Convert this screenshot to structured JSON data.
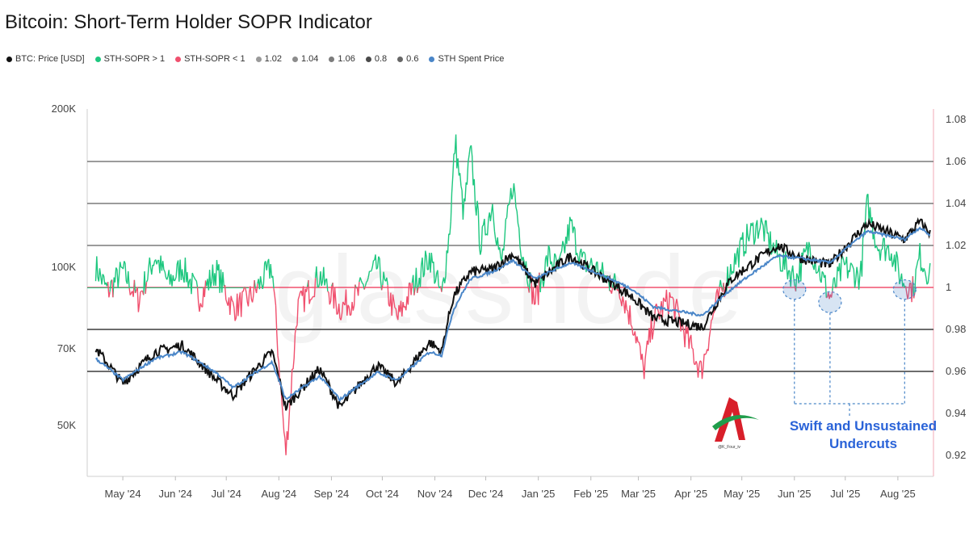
{
  "chart_data": {
    "type": "line",
    "title": "Bitcoin: Short-Term Holder SOPR Indicator",
    "legend": [
      {
        "label": "BTC: Price [USD]",
        "color": "#111111"
      },
      {
        "label": "STH-SOPR > 1",
        "color": "#1ec77f"
      },
      {
        "label": "STH-SOPR < 1",
        "color": "#f0506e"
      },
      {
        "label": "1.02",
        "color": "#9a9a9a"
      },
      {
        "label": "1.04",
        "color": "#8c8c8c"
      },
      {
        "label": "1.06",
        "color": "#7c7c7c"
      },
      {
        "label": "0.8",
        "color": "#4a4a4a"
      },
      {
        "label": "0.6",
        "color": "#666666"
      },
      {
        "label": "STH Spent Price",
        "color": "#4a86c8"
      }
    ],
    "x_ticks": [
      "May '24",
      "Jun '24",
      "Jul '24",
      "Aug '24",
      "Sep '24",
      "Oct '24",
      "Nov '24",
      "Dec '24",
      "Jan '25",
      "Feb '25",
      "Mar '25",
      "Apr '25",
      "May '25",
      "Jun '25",
      "Jul '25",
      "Aug '25"
    ],
    "y_left": {
      "scale": "log",
      "ticks": [
        {
          "value": 50000,
          "label": "50K"
        },
        {
          "value": 70000,
          "label": "70K"
        },
        {
          "value": 100000,
          "label": "100K"
        },
        {
          "value": 200000,
          "label": "200K"
        }
      ],
      "range": [
        40000,
        200000
      ]
    },
    "y_right": {
      "ticks": [
        "0.92",
        "0.94",
        "0.96",
        "0.98",
        "1",
        "1.02",
        "1.04",
        "1.06",
        "1.08"
      ],
      "range": [
        0.91,
        1.085
      ]
    },
    "reference_lines": [
      0.96,
      0.98,
      1.0,
      1.02,
      1.04,
      1.06
    ],
    "price_series": {
      "name": "BTC: Price [USD]",
      "x": [
        "2024-04-15",
        "2024-05-01",
        "2024-05-20",
        "2024-06-05",
        "2024-06-25",
        "2024-07-05",
        "2024-07-28",
        "2024-08-05",
        "2024-08-25",
        "2024-09-06",
        "2024-09-28",
        "2024-10-10",
        "2024-10-29",
        "2024-11-05",
        "2024-11-12",
        "2024-11-22",
        "2024-12-05",
        "2024-12-17",
        "2024-12-30",
        "2025-01-20",
        "2025-02-03",
        "2025-02-25",
        "2025-03-10",
        "2025-04-08",
        "2025-04-25",
        "2025-05-22",
        "2025-06-05",
        "2025-06-22",
        "2025-07-14",
        "2025-08-05",
        "2025-08-14",
        "2025-08-20"
      ],
      "values": [
        70000,
        60000,
        69000,
        71000,
        61000,
        57000,
        69000,
        54000,
        64000,
        54000,
        65000,
        60000,
        72000,
        69000,
        88000,
        98000,
        99000,
        106000,
        93000,
        105000,
        98000,
        88000,
        80000,
        77000,
        95000,
        110000,
        104000,
        101000,
        121000,
        113000,
        122000,
        116000
      ]
    },
    "spent_price_series": {
      "name": "STH Spent Price",
      "x": [
        "2024-04-15",
        "2024-05-01",
        "2024-05-20",
        "2024-06-05",
        "2024-06-25",
        "2024-07-05",
        "2024-07-28",
        "2024-08-05",
        "2024-08-25",
        "2024-09-06",
        "2024-09-28",
        "2024-10-10",
        "2024-10-29",
        "2024-11-05",
        "2024-11-12",
        "2024-11-22",
        "2024-12-05",
        "2024-12-17",
        "2024-12-30",
        "2025-01-20",
        "2025-02-03",
        "2025-02-25",
        "2025-03-10",
        "2025-04-08",
        "2025-04-25",
        "2025-05-22",
        "2025-06-05",
        "2025-06-22",
        "2025-07-14",
        "2025-08-05",
        "2025-08-14",
        "2025-08-20"
      ],
      "values": [
        67000,
        61000,
        67000,
        69000,
        63000,
        59000,
        66000,
        56000,
        62000,
        56000,
        63000,
        61000,
        69000,
        68000,
        83000,
        95000,
        98000,
        103000,
        95000,
        102000,
        98000,
        91000,
        84000,
        81000,
        91000,
        105000,
        104000,
        102000,
        117000,
        113000,
        119000,
        115000
      ]
    },
    "sopr_series": {
      "name": "STH-SOPR",
      "x": [
        "2024-04-15",
        "2024-04-22",
        "2024-05-01",
        "2024-05-10",
        "2024-05-20",
        "2024-05-28",
        "2024-06-05",
        "2024-06-15",
        "2024-06-25",
        "2024-07-05",
        "2024-07-15",
        "2024-07-28",
        "2024-08-05",
        "2024-08-12",
        "2024-08-25",
        "2024-09-06",
        "2024-09-16",
        "2024-09-28",
        "2024-10-10",
        "2024-10-20",
        "2024-10-29",
        "2024-11-05",
        "2024-11-10",
        "2024-11-13",
        "2024-11-18",
        "2024-11-22",
        "2024-11-28",
        "2024-12-05",
        "2024-12-10",
        "2024-12-17",
        "2024-12-22",
        "2024-12-30",
        "2025-01-07",
        "2025-01-13",
        "2025-01-20",
        "2025-01-27",
        "2025-02-03",
        "2025-02-10",
        "2025-02-18",
        "2025-02-27",
        "2025-03-04",
        "2025-03-10",
        "2025-03-20",
        "2025-03-30",
        "2025-04-07",
        "2025-04-15",
        "2025-04-25",
        "2025-05-05",
        "2025-05-12",
        "2025-05-22",
        "2025-06-02",
        "2025-06-10",
        "2025-06-22",
        "2025-06-30",
        "2025-07-10",
        "2025-07-14",
        "2025-07-20",
        "2025-07-28",
        "2025-08-03",
        "2025-08-10",
        "2025-08-14",
        "2025-08-20"
      ],
      "values": [
        1.01,
        0.998,
        1.008,
        0.994,
        1.015,
        1.002,
        1.01,
        0.995,
        1.008,
        0.99,
        0.995,
        1.01,
        0.92,
        0.99,
        1.006,
        0.99,
        0.996,
        1.01,
        0.985,
        1.002,
        1.015,
        0.995,
        1.03,
        1.07,
        1.035,
        1.065,
        1.02,
        1.04,
        1.01,
        1.05,
        1.02,
        0.993,
        1.015,
        1.008,
        1.03,
        1.012,
        1.01,
        1.004,
        1.0,
        0.98,
        0.96,
        0.985,
        0.995,
        0.975,
        0.96,
        0.99,
        1.01,
        1.025,
        1.03,
        1.015,
        1.004,
        1.02,
        0.995,
        1.01,
        1.005,
        1.04,
        1.02,
        1.018,
        1.004,
        0.999,
        1.015,
        1.005
      ]
    },
    "annotations": [
      {
        "text": "Swift and Unsustained Undercuts",
        "dates": [
          "2025-06-01",
          "2025-06-22",
          "2025-08-05"
        ]
      }
    ],
    "logo_text": "@K_Four_iv",
    "watermark": "glassnode"
  }
}
